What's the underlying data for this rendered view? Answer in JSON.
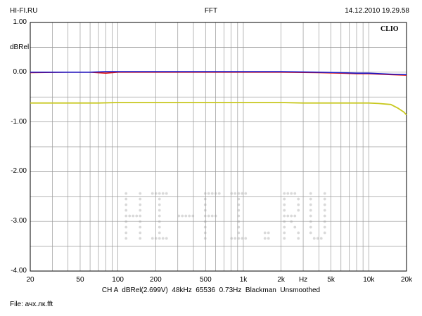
{
  "header": {
    "left": "HI-FI.RU",
    "center": "FFT",
    "right": "14.12.2010 19.29.58"
  },
  "logo_text": "CLIO",
  "watermark_text": "HI-FI.RU",
  "footer": {
    "info": "CH A  dBRel(2.699V)  48kHz  65536  0.73Hz  Blackman  Unsmoothed",
    "file": "File: ачх.лк.fft"
  },
  "colors": {
    "grid": "#9a9a9a",
    "frame": "#000000",
    "red_trace": "#e01010",
    "blue_trace": "#1a1acc",
    "yellow_trace": "#c8c81e",
    "watermark": "#d9d9d9"
  },
  "chart_data": {
    "type": "line",
    "xscale": "log",
    "xlim": [
      20,
      20000
    ],
    "ylim": [
      -4.0,
      1.0
    ],
    "ylabel": "dBRel",
    "xunit_label": "Hz",
    "y_ticks": [
      {
        "value": 1.0,
        "label": "1.00"
      },
      {
        "value": 0.0,
        "label": "0.00"
      },
      {
        "value": -1.0,
        "label": "-1.00"
      },
      {
        "value": -2.0,
        "label": "-2.00"
      },
      {
        "value": -3.0,
        "label": "-3.00"
      },
      {
        "value": -4.0,
        "label": "-4.00"
      }
    ],
    "x_ticks": [
      {
        "value": 20,
        "label": "20"
      },
      {
        "value": 50,
        "label": "50"
      },
      {
        "value": 100,
        "label": "100"
      },
      {
        "value": 200,
        "label": "200"
      },
      {
        "value": 500,
        "label": "500"
      },
      {
        "value": 1000,
        "label": "1k"
      },
      {
        "value": 2000,
        "label": "2k"
      },
      {
        "value": 5000,
        "label": "5k"
      },
      {
        "value": 10000,
        "label": "10k"
      },
      {
        "value": 20000,
        "label": "20k"
      }
    ],
    "grid": true,
    "series": [
      {
        "color": "#e01010",
        "x": [
          20,
          40,
          60,
          80,
          100,
          200,
          500,
          1000,
          2000,
          4000,
          6000,
          8000,
          10000,
          15000,
          20000
        ],
        "y": [
          -0.01,
          0.0,
          0.0,
          -0.02,
          0.0,
          0.0,
          0.0,
          0.0,
          0.0,
          -0.01,
          -0.02,
          -0.03,
          -0.03,
          -0.05,
          -0.06
        ]
      },
      {
        "color": "#1a1acc",
        "x": [
          20,
          40,
          60,
          80,
          100,
          200,
          500,
          1000,
          2000,
          4000,
          6000,
          8000,
          10000,
          15000,
          20000
        ],
        "y": [
          0.0,
          0.0,
          0.0,
          0.01,
          0.01,
          0.01,
          0.01,
          0.01,
          0.01,
          0.0,
          -0.01,
          -0.02,
          -0.02,
          -0.04,
          -0.05
        ]
      },
      {
        "color": "#c8c81e",
        "x": [
          20,
          30,
          50,
          70,
          100,
          150,
          200,
          500,
          1000,
          2000,
          3000,
          5000,
          10000,
          12000,
          15000,
          17000,
          19000,
          20000
        ],
        "y": [
          -0.62,
          -0.62,
          -0.62,
          -0.62,
          -0.61,
          -0.61,
          -0.61,
          -0.61,
          -0.61,
          -0.61,
          -0.62,
          -0.62,
          -0.62,
          -0.63,
          -0.65,
          -0.72,
          -0.8,
          -0.86
        ]
      }
    ]
  }
}
